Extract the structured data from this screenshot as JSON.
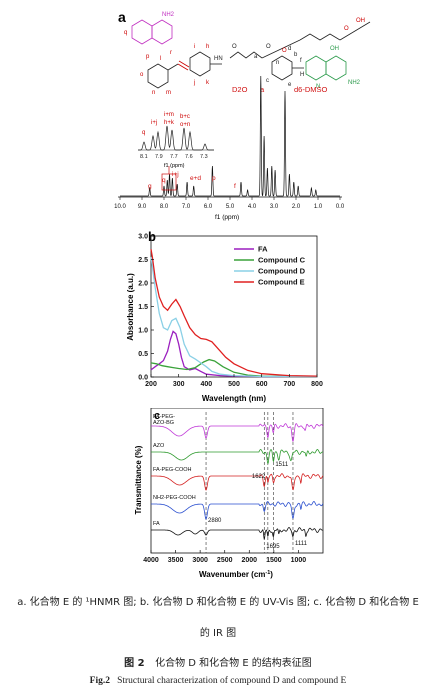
{
  "panel_a": {
    "letter": "a",
    "struct_labels": {
      "nh2_top": "NH2",
      "q": "q",
      "o_left": "o",
      "p": "p",
      "l": "l",
      "n": "n",
      "m": "m",
      "r": "r",
      "i": "i",
      "h": "h",
      "j": "j",
      "k": "k",
      "hn": "HN",
      "o1": "O",
      "o2": "O",
      "subscript": "n",
      "oh_acid": "OH",
      "o3": "O",
      "o4": "O",
      "b": "b",
      "d": "d",
      "c": "c",
      "a": "a",
      "e": "e",
      "f": "f",
      "oh_pterin": "OH",
      "n_label": "N",
      "nh2_right": "NH2",
      "h_label": "H"
    },
    "solvent_labels": [
      "D2O",
      "a",
      "d6-DMSO"
    ],
    "peak_labels": [
      "g",
      "q",
      "i+j",
      "e+d",
      "p",
      "f",
      "b+c",
      "o+n"
    ],
    "inset_labels": [
      "q",
      "i+j",
      "i+m",
      "h+k",
      "b+c",
      "o+n"
    ],
    "inset_ticks": [
      "8.1",
      "7.9",
      "7.7",
      "7.6",
      "7.3"
    ],
    "inset_xlabel": "f1 (ppm)",
    "x_ticks": [
      "10.0",
      "9.0",
      "8.0",
      "7.0",
      "6.0",
      "5.0",
      "4.0",
      "3.0",
      "2.0",
      "1.0",
      "0.0"
    ],
    "xlabel": "f1 (ppm)"
  },
  "chart_data": [
    {
      "panel": "b",
      "type": "line",
      "xlabel": "Wavelength (nm)",
      "ylabel": "Absorbance (a.u.)",
      "xlim": [
        200,
        800
      ],
      "ylim": [
        0.0,
        3.0
      ],
      "x_ticks": [
        200,
        300,
        400,
        500,
        600,
        700,
        800
      ],
      "y_ticks": [
        "0.0",
        "0.5",
        "1.0",
        "1.5",
        "2.0",
        "2.5",
        "3.0"
      ],
      "legend_position": "top-right",
      "series": [
        {
          "name": "FA",
          "color": "#9b1fbf",
          "x": [
            200,
            215,
            230,
            245,
            260,
            270,
            280,
            290,
            300,
            310,
            320,
            340,
            360,
            380,
            400,
            450,
            500,
            600,
            700,
            800
          ],
          "y": [
            0.15,
            0.22,
            0.28,
            0.35,
            0.55,
            0.8,
            0.97,
            0.92,
            0.7,
            0.42,
            0.22,
            0.15,
            0.18,
            0.12,
            0.06,
            0.03,
            0.02,
            0.01,
            0.01,
            0.01
          ]
        },
        {
          "name": "Compound C",
          "color": "#3aa23a",
          "x": [
            200,
            220,
            240,
            260,
            280,
            300,
            330,
            360,
            390,
            410,
            430,
            460,
            500,
            550,
            600,
            700,
            800
          ],
          "y": [
            0.3,
            0.28,
            0.24,
            0.22,
            0.2,
            0.18,
            0.16,
            0.2,
            0.32,
            0.37,
            0.34,
            0.22,
            0.1,
            0.04,
            0.02,
            0.01,
            0.01
          ]
        },
        {
          "name": "Compound D",
          "color": "#8ad0e6",
          "x": [
            200,
            205,
            215,
            230,
            245,
            260,
            275,
            290,
            305,
            320,
            340,
            360,
            380,
            400,
            420,
            450,
            500,
            600,
            700,
            800
          ],
          "y": [
            2.55,
            2.35,
            1.9,
            1.35,
            1.05,
            1.0,
            1.2,
            1.25,
            1.05,
            0.7,
            0.45,
            0.38,
            0.3,
            0.22,
            0.12,
            0.06,
            0.03,
            0.01,
            0.01,
            0.01
          ]
        },
        {
          "name": "Compound E",
          "color": "#e02020",
          "x": [
            200,
            205,
            215,
            230,
            245,
            260,
            275,
            290,
            305,
            320,
            340,
            360,
            380,
            400,
            420,
            440,
            470,
            500,
            550,
            600,
            700,
            800
          ],
          "y": [
            2.72,
            2.55,
            2.1,
            1.7,
            1.5,
            1.42,
            1.55,
            1.65,
            1.5,
            1.3,
            1.05,
            0.9,
            0.82,
            0.8,
            0.75,
            0.62,
            0.42,
            0.28,
            0.14,
            0.07,
            0.03,
            0.02
          ]
        }
      ]
    },
    {
      "panel": "c",
      "type": "line",
      "xlabel": "Wavenumber (cm-1)",
      "ylabel": "Transmittance (%)",
      "xlim": [
        4000,
        500
      ],
      "x_ticks": [
        4000,
        3500,
        3000,
        2500,
        2000,
        1500,
        1000
      ],
      "annotations": [
        "1622",
        "1511",
        "2880",
        "1695",
        "1111"
      ],
      "reference_lines_cm1": [
        2880,
        1695,
        1622,
        1511,
        1111
      ],
      "series": [
        {
          "name": "FA-PEG-AZO-BG",
          "color": "#c03ad8"
        },
        {
          "name": "AZO",
          "color": "#2e9a2e"
        },
        {
          "name": "FA-PEG-COOH",
          "color": "#d42020"
        },
        {
          "name": "NH2-PEG-COOH",
          "color": "#2a4fcf"
        },
        {
          "name": "FA",
          "color": "#111111"
        }
      ]
    }
  ],
  "caption": {
    "line1": "a. 化合物 E 的 ¹HNMR 图; b. 化合物 D 和化合物 E 的 UV-Vis 图; c. 化合物 D 和化合物 E",
    "line2": "的 IR 图",
    "fig_cn_num": "图 2",
    "fig_cn_title": "化合物 D 和化合物 E 的结构表征图",
    "fig_en_num": "Fig.2",
    "fig_en_title": "Structural characterization of compound D and compound E"
  }
}
